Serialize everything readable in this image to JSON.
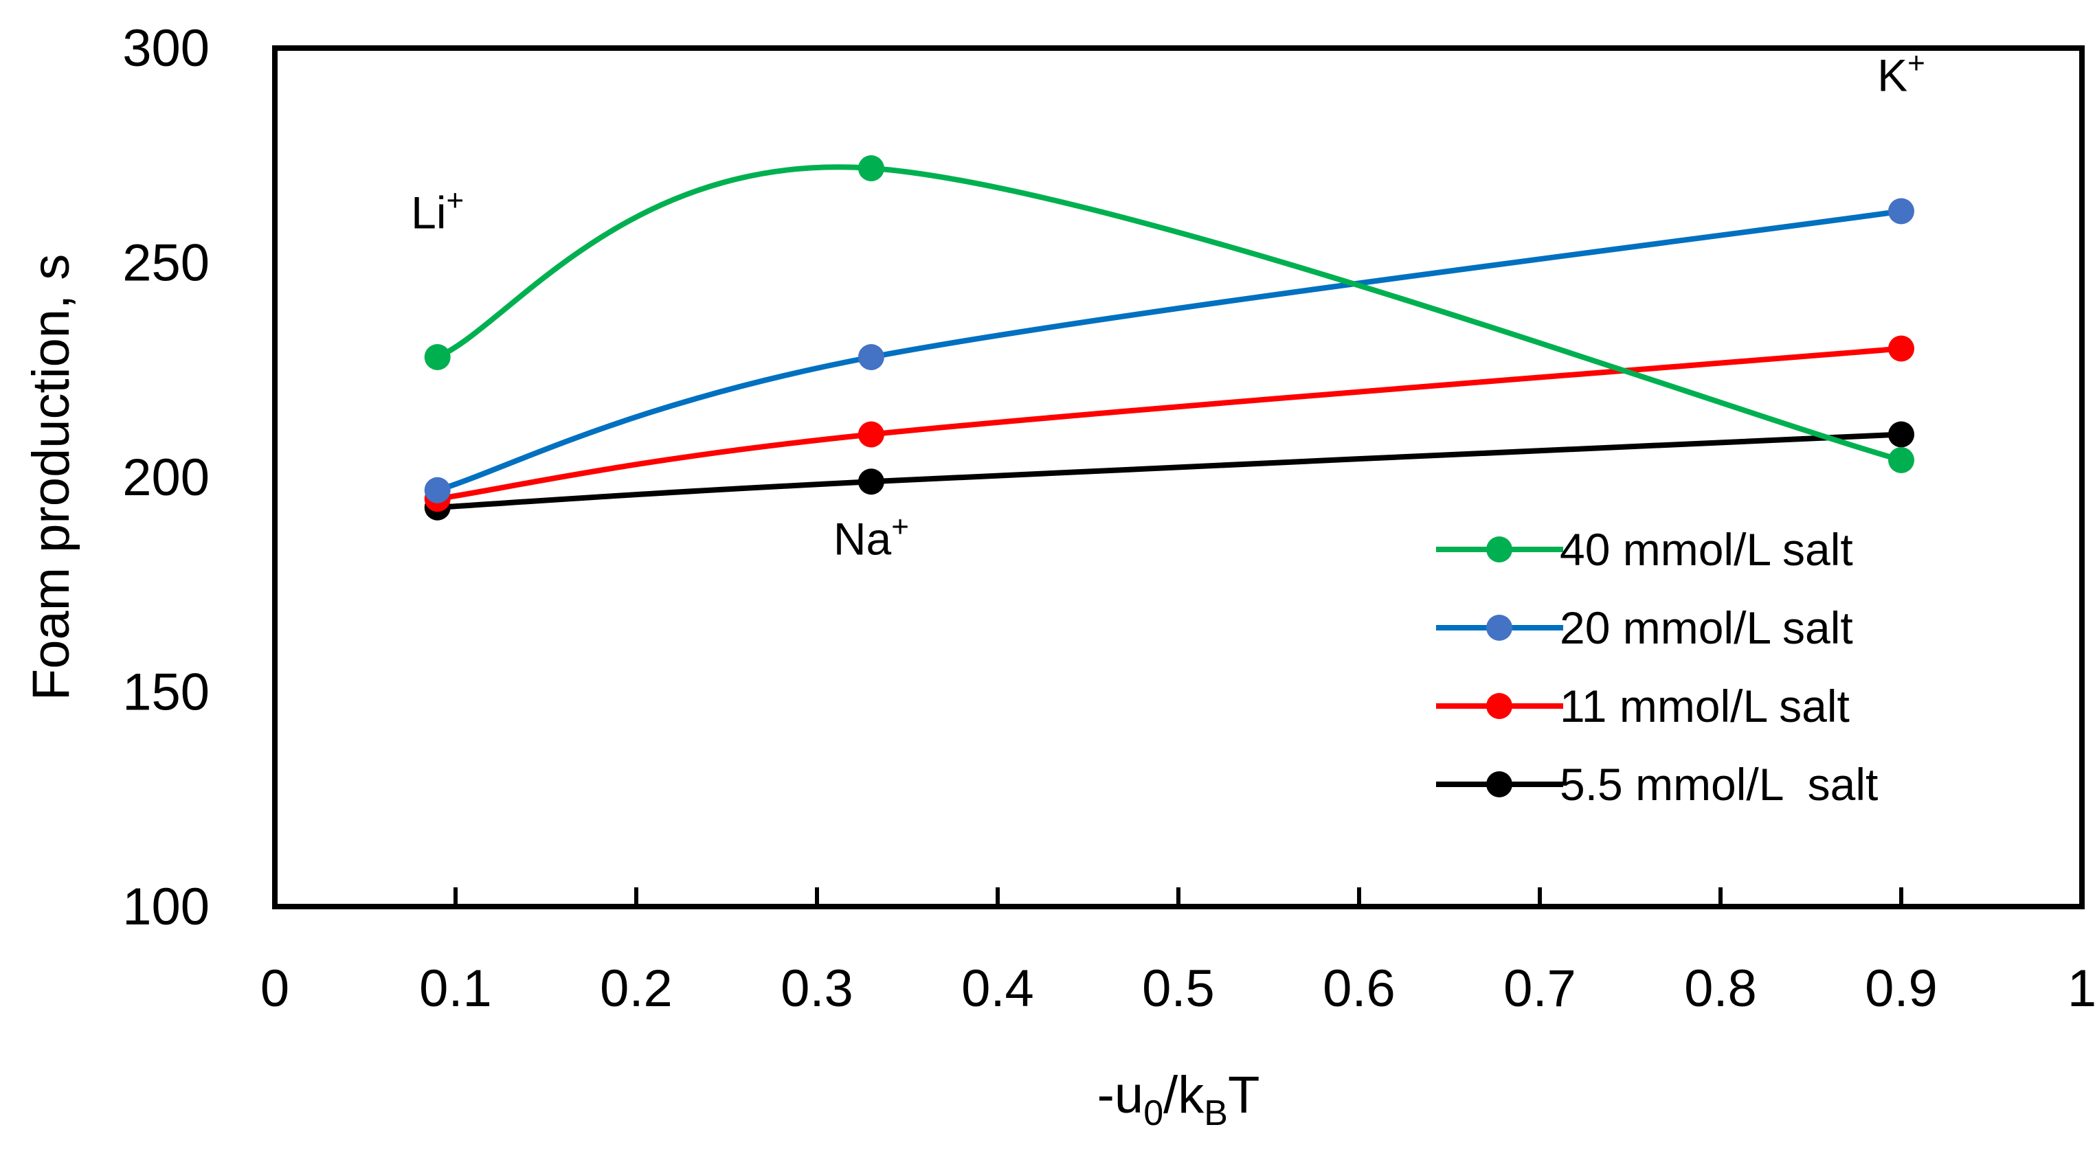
{
  "chart_data": {
    "type": "line",
    "title": "",
    "xlabel": "-u0/kBT",
    "ylabel": "Foam production, s",
    "xlim": [
      0,
      1
    ],
    "ylim": [
      100,
      300
    ],
    "x_ticks": [
      "0",
      "0.1",
      "0.2",
      "0.3",
      "0.4",
      "0.5",
      "0.6",
      "0.7",
      "0.8",
      "0.9",
      "1"
    ],
    "y_ticks": [
      "100",
      "150",
      "200",
      "250",
      "300"
    ],
    "x": [
      0.09,
      0.33,
      0.9
    ],
    "legend_position": "bottom-right",
    "series": [
      {
        "name": "40 mmol/L salt",
        "color": "#00b050",
        "values": [
          228,
          272,
          204
        ]
      },
      {
        "name": "20 mmol/L salt",
        "color": "#0070c0",
        "marker_color": "#4472c4",
        "values": [
          197,
          228,
          262
        ]
      },
      {
        "name": "11 mmol/L salt",
        "color": "#ff0000",
        "values": [
          195,
          210,
          230
        ]
      },
      {
        "name": "5.5 mmol/L  salt",
        "color": "#000000",
        "values": [
          193,
          199,
          210
        ]
      }
    ],
    "annotations": [
      {
        "base": "Li",
        "sup": "+",
        "x": 0.09,
        "y": 258
      },
      {
        "base": "Na",
        "sup": "+",
        "x": 0.33,
        "y": 182
      },
      {
        "base": "K",
        "sup": "+",
        "x": 0.9,
        "y": 290
      }
    ]
  }
}
